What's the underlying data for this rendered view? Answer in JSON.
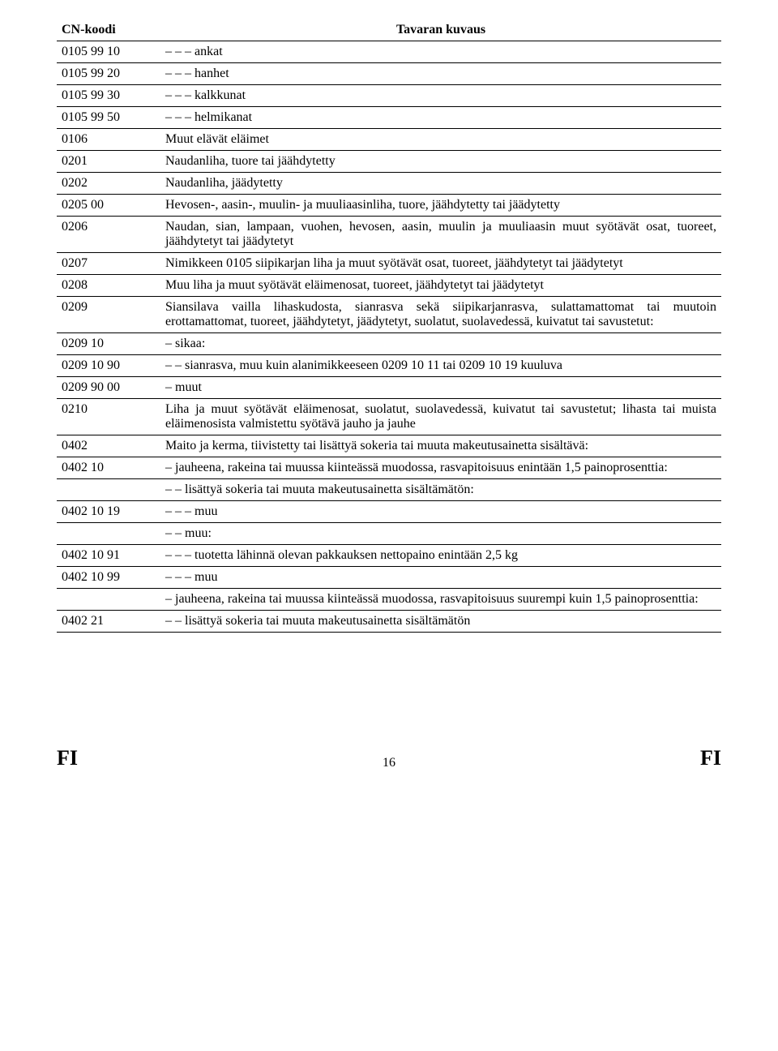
{
  "header": {
    "code": "CN-koodi",
    "desc": "Tavaran kuvaus"
  },
  "rows": [
    {
      "code": "0105 99 10",
      "desc": "– – – ankat"
    },
    {
      "code": "0105 99 20",
      "desc": "– – – hanhet"
    },
    {
      "code": "0105 99 30",
      "desc": "– – – kalkkunat"
    },
    {
      "code": "0105 99 50",
      "desc": "– – – helmikanat"
    },
    {
      "code": "0106",
      "desc": "Muut elävät eläimet"
    },
    {
      "code": "0201",
      "desc": "Naudanliha, tuore tai jäähdytetty"
    },
    {
      "code": "0202",
      "desc": "Naudanliha, jäädytetty"
    },
    {
      "code": "0205 00",
      "desc": "Hevosen-, aasin-, muulin- ja muuliaasinliha, tuore, jäähdytetty tai jäädytetty",
      "justify": true
    },
    {
      "code": "0206",
      "desc": "Naudan, sian, lampaan, vuohen, hevosen, aasin, muulin ja muuliaasin muut syötävät osat, tuoreet, jäähdytetyt tai jäädytetyt",
      "justify": true
    },
    {
      "code": "0207",
      "desc": "Nimikkeen 0105 siipikarjan liha ja muut syötävät osat, tuoreet, jäähdytetyt tai jäädytetyt",
      "justify": true
    },
    {
      "code": "0208",
      "desc": "Muu liha ja muut syötävät eläimenosat, tuoreet, jäähdytetyt tai jäädytetyt"
    },
    {
      "code": "0209",
      "desc": "Siansilava vailla lihaskudosta, sianrasva sekä siipikarjanrasva, sulattamattomat tai muutoin erottamattomat, tuoreet, jäähdytetyt, jäädytetyt, suolatut, suolavedessä, kuivatut tai savustetut:",
      "justify": true
    },
    {
      "code": "0209 10",
      "desc": "– sikaa:"
    },
    {
      "code": "0209 10 90",
      "desc": "– – sianrasva, muu kuin alanimikkeeseen 0209 10 11 tai 0209 10 19 kuuluva",
      "justify": true
    },
    {
      "code": "0209 90 00",
      "desc": "– muut"
    },
    {
      "code": "0210",
      "desc": "Liha ja muut syötävät eläimenosat, suolatut, suolavedessä, kuivatut tai savustetut; lihasta tai muista eläimenosista valmistettu syötävä jauho ja jauhe",
      "justify": true
    },
    {
      "code": "0402",
      "desc": "Maito ja kerma, tiivistetty tai lisättyä sokeria tai muuta makeutusainetta sisältävä:",
      "justify": true
    },
    {
      "code": "0402 10",
      "desc": "– jauheena, rakeina tai muussa kiinteässä muodossa, rasvapitoisuus enintään 1,5 painoprosenttia:",
      "justify": true
    },
    {
      "code": "",
      "desc": "– – lisättyä sokeria tai muuta makeutusainetta sisältämätön:"
    },
    {
      "code": "0402 10 19",
      "desc": "– – – muu"
    },
    {
      "code": "",
      "desc": "– – muu:"
    },
    {
      "code": "0402 10 91",
      "desc": "– – – tuotetta lähinnä olevan pakkauksen nettopaino enintään 2,5 kg"
    },
    {
      "code": "0402 10 99",
      "desc": "– – – muu"
    },
    {
      "code": "",
      "desc": "– jauheena, rakeina tai muussa kiinteässä muodossa, rasvapitoisuus suurempi kuin 1,5 painoprosenttia:",
      "justify": true
    },
    {
      "code": "0402 21",
      "desc": "– – lisättyä sokeria tai muuta makeutusainetta sisältämätön"
    }
  ],
  "footer": {
    "left": "FI",
    "page": "16",
    "right": "FI"
  }
}
